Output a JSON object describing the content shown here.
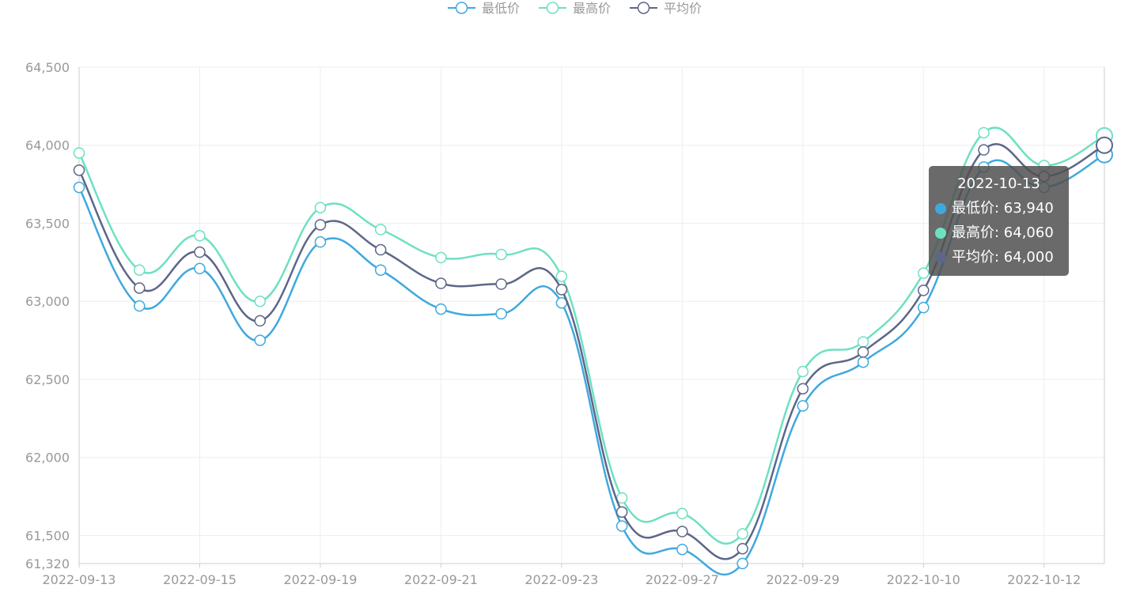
{
  "legend": [
    {
      "label": "最低价",
      "color": "#3fa9dd"
    },
    {
      "label": "最高价",
      "color": "#6ee0c2"
    },
    {
      "label": "平均价",
      "color": "#5d6688"
    }
  ],
  "tooltip": {
    "title": "2022-10-13",
    "rows": [
      {
        "label": "最低价: 63,940",
        "color": "#3fa9dd"
      },
      {
        "label": "最高价: 64,060",
        "color": "#6ee0c2"
      },
      {
        "label": "平均价: 64,000",
        "color": "#5d6688"
      }
    ]
  },
  "chart_data": {
    "type": "line",
    "x": [
      "2022-09-13",
      "2022-09-14",
      "2022-09-15",
      "2022-09-16",
      "2022-09-19",
      "2022-09-20",
      "2022-09-21",
      "2022-09-22",
      "2022-09-23",
      "2022-09-26",
      "2022-09-27",
      "2022-09-28",
      "2022-09-29",
      "2022-09-30",
      "2022-10-10",
      "2022-10-11",
      "2022-10-12",
      "2022-10-13"
    ],
    "x_tick_labels": [
      "2022-09-13",
      "2022-09-15",
      "2022-09-19",
      "2022-09-21",
      "2022-09-23",
      "2022-09-27",
      "2022-09-29",
      "2022-10-10",
      "2022-10-12"
    ],
    "y_tick_labels": [
      "61,320",
      "61,500",
      "62,000",
      "62,500",
      "63,000",
      "63,500",
      "64,000",
      "64,500"
    ],
    "y_ticks": [
      61320,
      61500,
      62000,
      62500,
      63000,
      63500,
      64000,
      64500
    ],
    "ylim": [
      61320,
      64500
    ],
    "series": [
      {
        "name": "最低价",
        "color": "#3fa9dd",
        "values": [
          63730,
          62970,
          63210,
          62750,
          63380,
          63200,
          62950,
          62920,
          62990,
          61560,
          61410,
          61320,
          62330,
          62610,
          62960,
          63860,
          63730,
          63940
        ]
      },
      {
        "name": "最高价",
        "color": "#6ee0c2",
        "values": [
          63950,
          63200,
          63420,
          63000,
          63600,
          63460,
          63280,
          63300,
          63160,
          61740,
          61640,
          61510,
          62550,
          62740,
          63180,
          64080,
          63870,
          64060
        ]
      },
      {
        "name": "平均价",
        "color": "#5d6688",
        "values": [
          63840,
          63085,
          63315,
          62875,
          63490,
          63330,
          63115,
          63110,
          63075,
          61650,
          61525,
          61415,
          62440,
          62675,
          63070,
          63970,
          63800,
          64000
        ]
      }
    ],
    "highlight_index": 17,
    "grid": true,
    "legend_position": "top-center"
  }
}
